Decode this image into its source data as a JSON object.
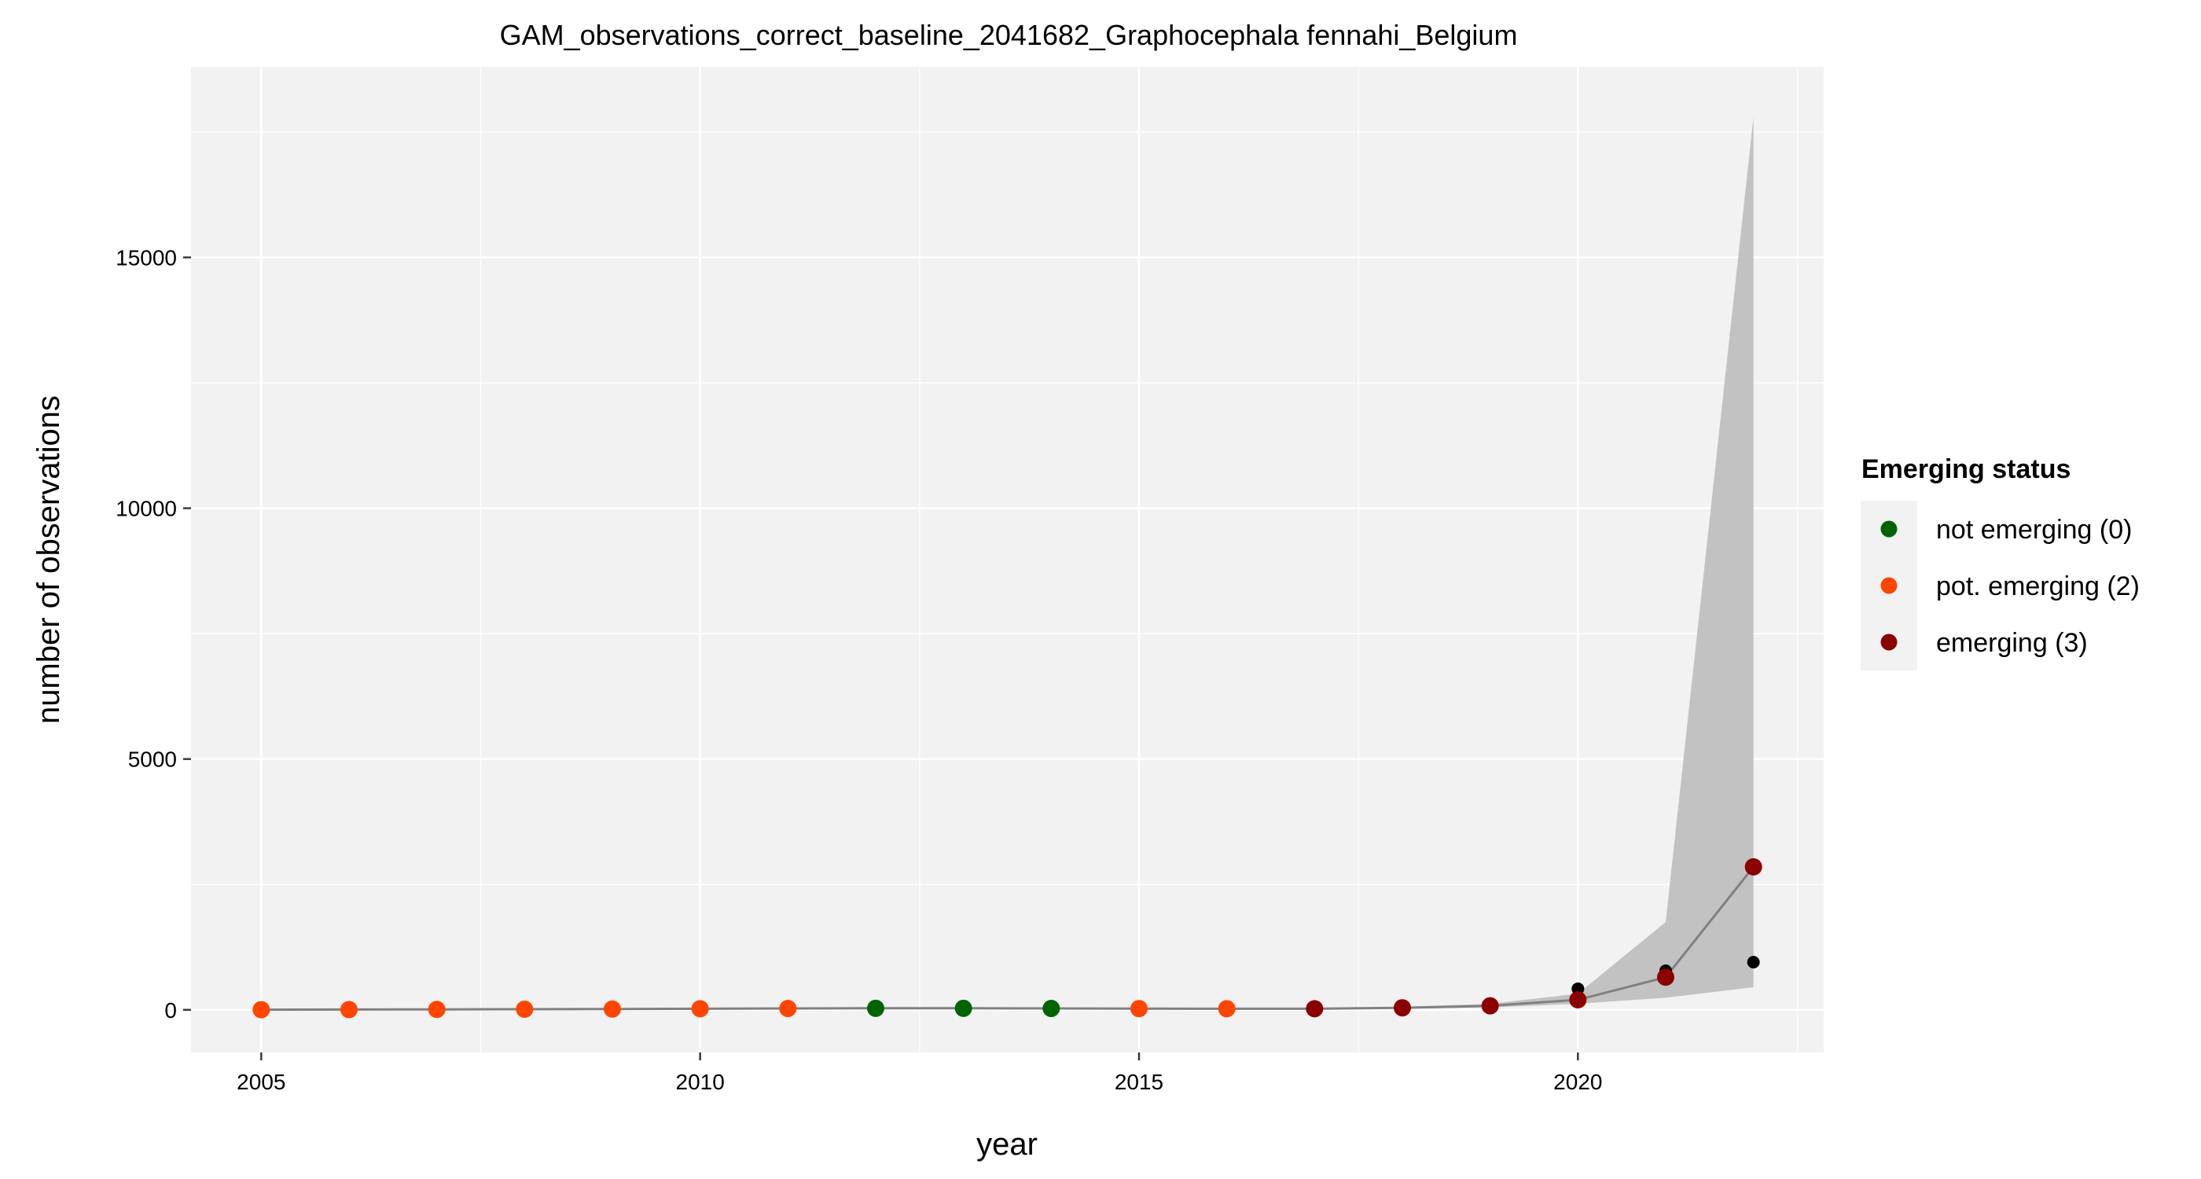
{
  "chart_data": {
    "type": "line",
    "title": "GAM_observations_correct_baseline_2041682_Graphocephala fennahi_Belgium",
    "xlabel": "year",
    "ylabel": "number of observations",
    "xlim": [
      2004.2,
      2022.8
    ],
    "ylim": [
      -850,
      18800
    ],
    "x_ticks": [
      2005,
      2010,
      2015,
      2020
    ],
    "x_tick_labels": [
      "2005",
      "2010",
      "2015",
      "2020"
    ],
    "y_ticks": [
      0,
      5000,
      10000,
      15000
    ],
    "y_tick_labels": [
      "0",
      "5000",
      "10000",
      "15000"
    ],
    "grid": true,
    "legend_position": "right",
    "legend_title": "Emerging status",
    "legend": [
      {
        "label": "not emerging (0)",
        "color": "#006400"
      },
      {
        "label": "pot. emerging (2)",
        "color": "#ff4500"
      },
      {
        "label": "emerging (3)",
        "color": "#8b0000"
      }
    ],
    "colors": {
      "panel_background": "#f2f2f2",
      "grid": "#ffffff",
      "band": "#c2c2c2",
      "fit_line": "#808080",
      "observed_point": "#000000"
    },
    "band": {
      "x": [
        2005,
        2006,
        2007,
        2008,
        2009,
        2010,
        2011,
        2012,
        2013,
        2014,
        2015,
        2016,
        2017,
        2018,
        2019,
        2020,
        2021,
        2022
      ],
      "lower": [
        0,
        0,
        2,
        5,
        8,
        12,
        15,
        18,
        18,
        16,
        14,
        12,
        12,
        25,
        50,
        120,
        240,
        450
      ],
      "upper": [
        8,
        10,
        14,
        18,
        24,
        30,
        38,
        42,
        40,
        36,
        34,
        32,
        32,
        60,
        120,
        320,
        1750,
        17800
      ]
    },
    "fit": {
      "x": [
        2005,
        2006,
        2007,
        2008,
        2009,
        2010,
        2011,
        2012,
        2013,
        2014,
        2015,
        2016,
        2017,
        2018,
        2019,
        2020,
        2021,
        2022
      ],
      "y": [
        3,
        5,
        8,
        12,
        16,
        22,
        27,
        30,
        30,
        27,
        24,
        22,
        22,
        40,
        80,
        200,
        650,
        2850
      ]
    },
    "series": [
      {
        "name": "not emerging (0)",
        "color": "#006400",
        "x": [
          2012,
          2013,
          2014
        ],
        "y": [
          30,
          30,
          27
        ]
      },
      {
        "name": "pot. emerging (2)",
        "color": "#ff4500",
        "x": [
          2005,
          2006,
          2007,
          2008,
          2009,
          2010,
          2011,
          2015,
          2016
        ],
        "y": [
          3,
          5,
          8,
          12,
          16,
          22,
          27,
          24,
          22
        ]
      },
      {
        "name": "emerging (3)",
        "color": "#8b0000",
        "x": [
          2017,
          2018,
          2019,
          2020,
          2021,
          2022
        ],
        "y": [
          22,
          40,
          80,
          200,
          650,
          2850
        ]
      }
    ],
    "observed": {
      "x": [
        2020,
        2021,
        2022
      ],
      "y": [
        420,
        780,
        950
      ]
    }
  }
}
